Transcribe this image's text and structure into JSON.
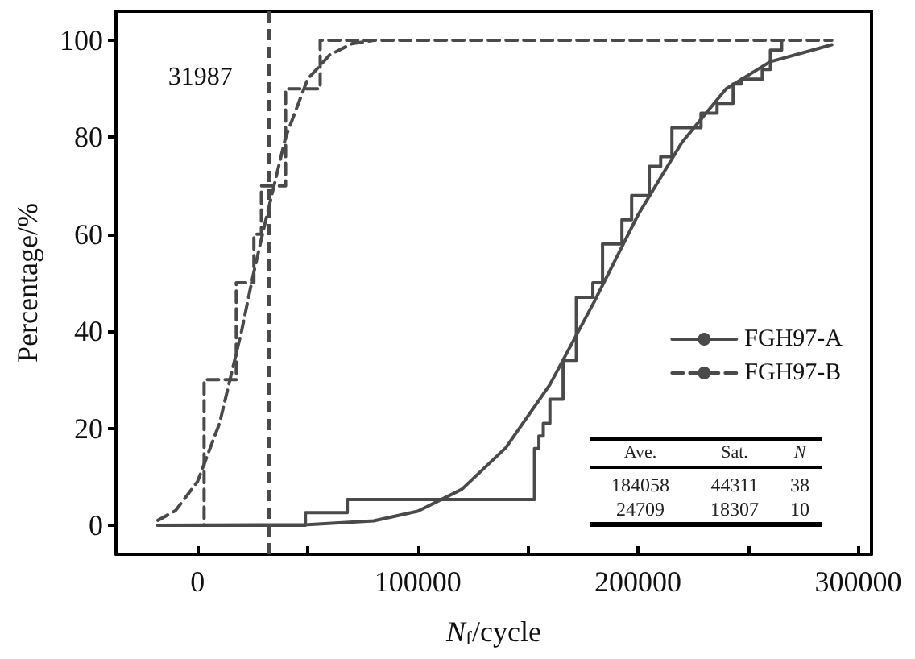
{
  "chart_data": {
    "type": "line",
    "xlabel": "N$_{f}$/cycle",
    "ylabel": "Percentage/%",
    "xlim": [
      -37000,
      306000
    ],
    "ylim": [
      -6,
      106
    ],
    "xticks": [
      0,
      {
        "value": 50000,
        "label": null
      },
      100000,
      {
        "value": 150000,
        "label": null
      },
      200000,
      {
        "value": 250000,
        "label": null
      },
      300000
    ],
    "yticks": [
      0,
      20,
      40,
      60,
      80,
      100
    ],
    "grid": false,
    "legend": "right",
    "marker": "none",
    "series": [
      {
        "name": "FGH97-A",
        "type": "step",
        "color": "#4a4a4a",
        "line_style": "solid",
        "x": [
          -18000,
          49000,
          68000,
          153000,
          155000,
          157000,
          160000,
          166000,
          172000,
          179500,
          183900,
          192700,
          197100,
          205100,
          210300,
          215400,
          228600,
          235900,
          243200,
          246900,
          256400,
          260100,
          265200
        ],
        "values": [
          0,
          2.6,
          5.3,
          15.8,
          18.4,
          21,
          26,
          34,
          47,
          50,
          58,
          63,
          68,
          74,
          76,
          82,
          85,
          87,
          91,
          92,
          94,
          98,
          100
        ]
      },
      {
        "color": "#4a4a4a",
        "line_style": "solid",
        "x": [
          -18000,
          50000,
          80000,
          100000,
          120000,
          140000,
          160000,
          180000,
          200000,
          220000,
          240000,
          260000,
          288000
        ],
        "values": [
          0,
          0.1,
          0.9,
          2.9,
          7.4,
          16,
          29,
          46,
          64,
          79,
          90,
          95.6,
          99.1
        ]
      },
      {
        "name": "FGH97-B",
        "type": "step",
        "color": "#4a4a4a",
        "line_style": "dashed",
        "x": [
          -18000,
          3000,
          17600,
          25600,
          29000,
          40000,
          55700,
          288000
        ],
        "values": [
          0,
          30,
          50,
          60,
          70,
          90,
          100,
          100
        ]
      },
      {
        "color": "#4a4a4a",
        "line_style": "dashed",
        "x": [
          -18000,
          -10000,
          0,
          10000,
          20000,
          25000,
          30000,
          40000,
          50000,
          60000,
          70000,
          80000
        ],
        "values": [
          1,
          3,
          9,
          21,
          40,
          51,
          61,
          80,
          92,
          97,
          99.3,
          100
        ]
      }
    ],
    "ref_lines": [
      {
        "axis": "x",
        "value": 31987,
        "label": "31987",
        "color": "#4a4a4a",
        "line_style": "dashed"
      }
    ],
    "annotations": [
      "Ave.",
      "Sat.",
      "N",
      "184058",
      "44311",
      "38",
      "24709",
      "18307",
      "10"
    ]
  }
}
